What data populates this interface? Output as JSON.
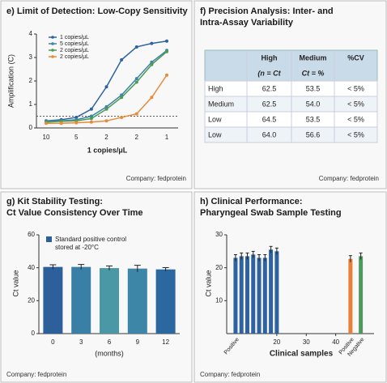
{
  "chart_data": [
    {
      "type": "line",
      "title": "e) Limit of Detection: Low-Copy Sensitivity",
      "x_label": "1 copies/μL",
      "y_label": "Amplification (C)",
      "categories": [
        "10",
        null,
        "5",
        null,
        "2",
        null,
        "2",
        null,
        "1"
      ],
      "ylim": [
        0,
        4
      ],
      "yticks": [
        0,
        1,
        2,
        3,
        4
      ],
      "threshold": 0.5,
      "series": [
        {
          "name": "1 copies/μL",
          "color": "#2f62a0",
          "values": [
            0.3,
            0.35,
            0.45,
            0.8,
            1.75,
            2.9,
            3.45,
            3.6,
            3.7
          ]
        },
        {
          "name": "5 copies/μL",
          "color": "#3b86a6",
          "values": [
            0.3,
            0.3,
            0.35,
            0.5,
            0.9,
            1.4,
            2.1,
            2.8,
            3.3
          ]
        },
        {
          "name": "2 copies/μL",
          "color": "#4f9a55",
          "values": [
            0.25,
            0.28,
            0.3,
            0.4,
            0.8,
            1.3,
            1.95,
            2.7,
            3.25
          ]
        },
        {
          "name": "2 copies/μL",
          "color": "#e98a3a",
          "values": [
            0.2,
            0.2,
            0.22,
            0.25,
            0.3,
            0.45,
            0.6,
            1.3,
            2.25
          ]
        }
      ],
      "footer": "Company: fedprotein"
    },
    {
      "type": "bar",
      "title": [
        "g) Kit Stability Testing:",
        "Ct Value Consistency Over Time"
      ],
      "x_label": "(months)",
      "y_label": "Ct value",
      "legend_text": [
        "Standard positive control",
        "stored at -20°C"
      ],
      "categories": [
        "0",
        "3",
        "6",
        "9",
        "12"
      ],
      "values": [
        40.5,
        40.5,
        39.8,
        39.5,
        39.0
      ],
      "errors": [
        1.3,
        1.5,
        1.3,
        2.0,
        1.1
      ],
      "colors": [
        "#2d5f9a",
        "#3a7fa6",
        "#4a98a6",
        "#3d86a8",
        "#2c68a0"
      ],
      "ylim": [
        0,
        60
      ],
      "yticks": [
        0,
        20,
        40,
        60
      ],
      "footer": "Company: fedprotein"
    },
    {
      "type": "bar-xy",
      "title": [
        "h) Clinical Performance:",
        "Pharyngeal Swab Sample Testing"
      ],
      "x_label": "Clinical samples",
      "y_label": "Ct value",
      "xlim": [
        3,
        53
      ],
      "xticks": [
        20,
        30,
        40
      ],
      "ylim": [
        0,
        30
      ],
      "yticks": [
        10,
        20,
        30
      ],
      "series": [
        {
          "name": "Positive",
          "color": "#2f62a0",
          "x": [
            6,
            8,
            10,
            12,
            14,
            16,
            18,
            20
          ],
          "values": [
            23,
            23.5,
            23.5,
            24,
            23,
            23,
            25.5,
            25
          ]
        },
        {
          "name": "Positive",
          "color": "#e8803a",
          "x": [
            45
          ],
          "values": [
            22.7
          ]
        },
        {
          "name": "Negative",
          "color": "#4e9a5e",
          "x": [
            48.5
          ],
          "values": [
            23.5
          ]
        }
      ],
      "footer": "Company: fedprotein"
    }
  ],
  "table": {
    "title": [
      "f) Precision Analysis: Inter- and",
      "Intra-Assay Variability"
    ],
    "header": [
      [
        "High",
        "Medium",
        "%CV"
      ],
      [
        "(n = Ct",
        "Ct = %"
      ]
    ],
    "rows": [
      [
        "High",
        "62.5",
        "53.5",
        "< 5%"
      ],
      [
        "Medium",
        "62.5",
        "54.0",
        "< 5%"
      ],
      [
        "Low",
        "64.5",
        "53.5",
        "< 5%"
      ],
      [
        "Low",
        "64.0",
        "56.6",
        "< 5%"
      ]
    ],
    "footer": "Company: fedprotein"
  }
}
